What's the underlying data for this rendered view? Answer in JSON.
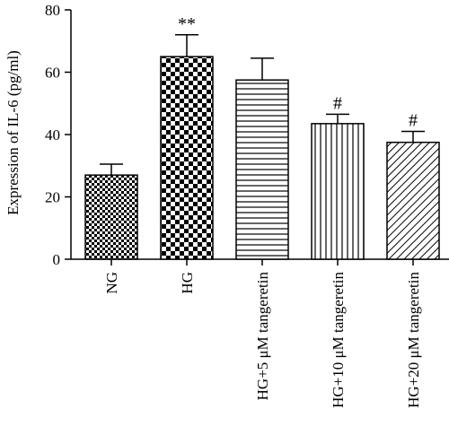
{
  "chart_data": {
    "type": "bar",
    "title": "",
    "xlabel": "",
    "ylabel": "Expression of IL-6 (pg/ml)",
    "ylim": [
      0,
      80
    ],
    "yticks": [
      "0",
      "20",
      "40",
      "60",
      "80"
    ],
    "grid": false,
    "legend": "none",
    "categories": [
      "NG",
      "HG",
      "HG+5 μM tangeretin",
      "HG+10 μM tangeretin",
      "HG+20 μM tangeretin"
    ],
    "values": [
      27,
      65,
      57.5,
      43.5,
      37.5
    ],
    "errors": [
      3.5,
      7,
      7,
      3,
      3.5
    ],
    "annotations": [
      "",
      "**",
      "",
      "#",
      "#"
    ],
    "patterns": [
      "fine-checker",
      "coarse-checker",
      "horizontal-lines",
      "vertical-lines",
      "diagonal-lines"
    ]
  }
}
